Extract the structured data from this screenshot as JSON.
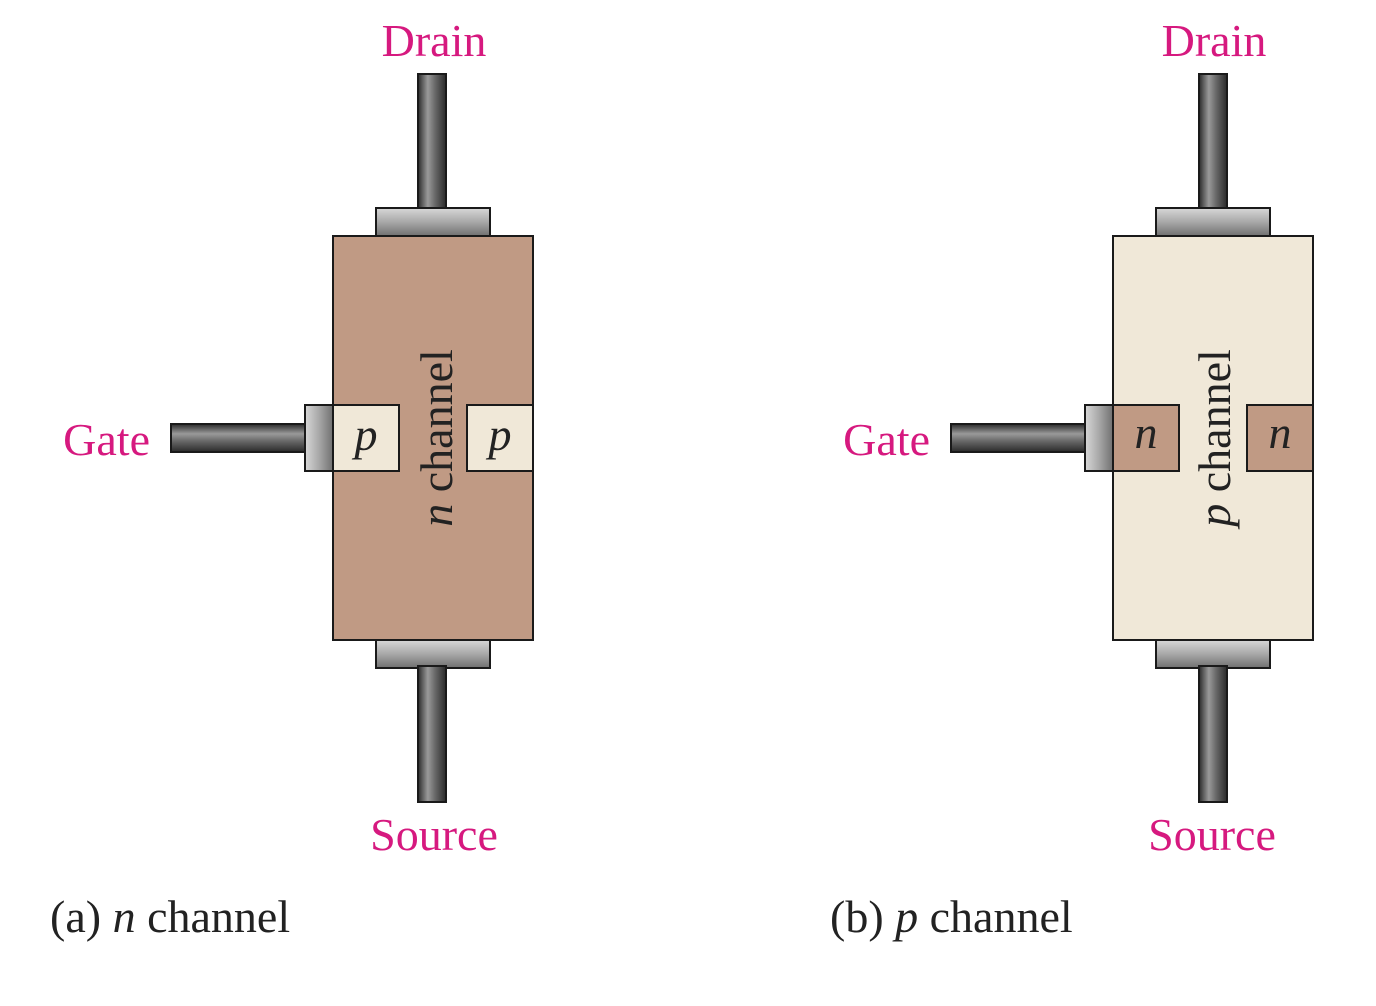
{
  "colors": {
    "label": "#d6197f",
    "n_region": "#c09a84",
    "p_region": "#f0e8d8",
    "metal": "#5e5e5e",
    "outline": "#1a1a1a",
    "text": "#222222"
  },
  "diagrams": [
    {
      "id": "a",
      "labels": {
        "drain": "Drain",
        "gate": "Gate",
        "source": "Source"
      },
      "channel_text": {
        "var": "n",
        "word": " channel"
      },
      "gate_region_text": "p",
      "caption": {
        "prefix": "(a) ",
        "var": "n",
        "word": " channel"
      },
      "channel_type": "n"
    },
    {
      "id": "b",
      "labels": {
        "drain": "Drain",
        "gate": "Gate",
        "source": "Source"
      },
      "channel_text": {
        "var": "p",
        "word": " channel"
      },
      "gate_region_text": "n",
      "caption": {
        "prefix": "(b) ",
        "var": "p",
        "word": " channel"
      },
      "channel_type": "p"
    }
  ]
}
